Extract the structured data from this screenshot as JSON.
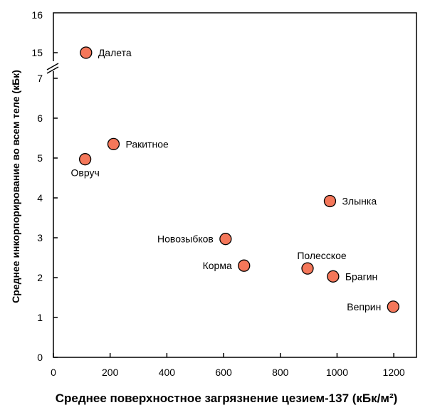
{
  "chart_data": {
    "type": "scatter",
    "title": "",
    "xlabel": "Среднее поверхностное загрязнение цезием-137 (кБк/м²)",
    "ylabel": "Среднее инкорпорирование во всем теле (кБк)",
    "xlim": [
      0,
      1280
    ],
    "x_ticks": [
      0,
      200,
      400,
      600,
      800,
      1000,
      1200
    ],
    "y_ticks_lower": [
      0,
      1,
      2,
      3,
      4,
      5,
      6,
      7
    ],
    "y_ticks_upper": [
      15,
      16
    ],
    "y_axis_break": "between 7 and 15",
    "marker_color": "#f4775a",
    "grid": false,
    "legend": "none",
    "points": [
      {
        "label": "Далета",
        "x": 115,
        "y": 15.0
      },
      {
        "label": "Ракитное",
        "x": 212,
        "y": 5.35
      },
      {
        "label": "Овруч",
        "x": 112,
        "y": 4.97
      },
      {
        "label": "Злынка",
        "x": 975,
        "y": 3.92
      },
      {
        "label": "Новозыбков",
        "x": 607,
        "y": 2.97
      },
      {
        "label": "Корма",
        "x": 672,
        "y": 2.3
      },
      {
        "label": "Полесское",
        "x": 896,
        "y": 2.23
      },
      {
        "label": "Брагин",
        "x": 986,
        "y": 2.03
      },
      {
        "label": "Веприн",
        "x": 1198,
        "y": 1.27
      }
    ]
  }
}
